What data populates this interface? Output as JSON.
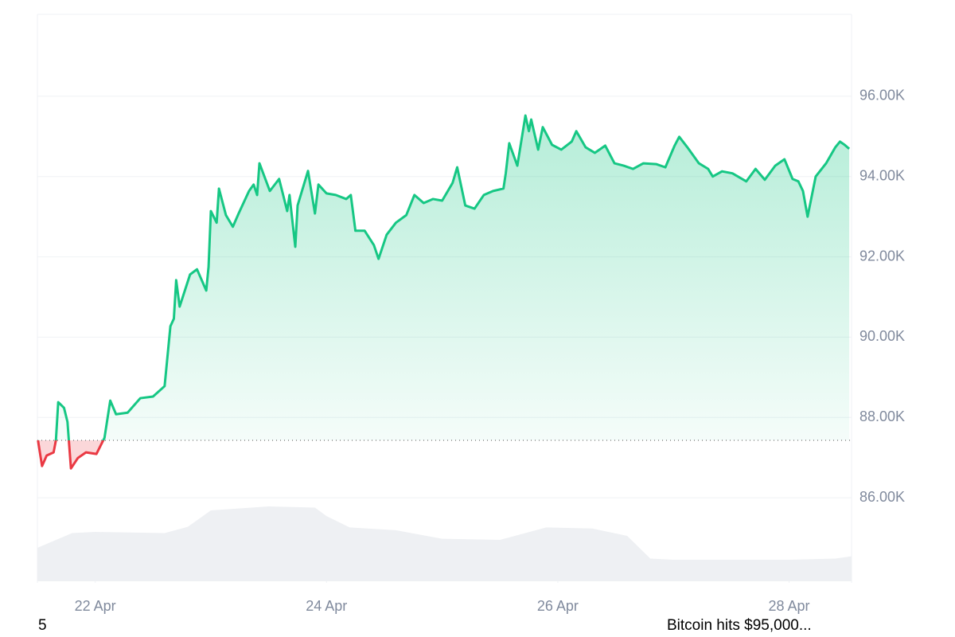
{
  "chart_data": {
    "type": "line",
    "x": [
      21.505,
      21.54,
      21.58,
      21.64,
      21.66,
      21.68,
      21.73,
      21.76,
      21.79,
      21.85,
      21.92,
      22.01,
      22.08,
      22.13,
      22.18,
      22.28,
      22.39,
      22.5,
      22.6,
      22.65,
      22.68,
      22.7,
      22.73,
      22.82,
      22.88,
      22.96,
      22.98,
      23.0,
      23.05,
      23.07,
      23.13,
      23.19,
      23.24,
      23.33,
      23.37,
      23.4,
      23.42,
      23.51,
      23.59,
      23.66,
      23.68,
      23.73,
      23.75,
      23.84,
      23.9,
      23.93,
      24.0,
      24.08,
      24.17,
      24.21,
      24.25,
      24.33,
      24.41,
      24.45,
      24.52,
      24.6,
      24.69,
      24.76,
      24.84,
      24.92,
      25.0,
      25.09,
      25.13,
      25.2,
      25.28,
      25.36,
      25.44,
      25.53,
      25.55,
      25.58,
      25.65,
      25.72,
      25.75,
      25.77,
      25.83,
      25.87,
      25.95,
      26.03,
      26.12,
      26.16,
      26.24,
      26.32,
      26.41,
      26.49,
      26.57,
      26.65,
      26.74,
      26.85,
      26.93,
      27.01,
      27.05,
      27.12,
      27.22,
      27.3,
      27.34,
      27.42,
      27.51,
      27.63,
      27.71,
      27.79,
      27.88,
      27.96,
      28.03,
      28.08,
      28.12,
      28.16,
      28.23,
      28.32,
      28.4,
      28.44,
      28.48,
      28.52
    ],
    "series": [
      {
        "color": "#16c784",
        "values": [
          87430,
          86790,
          87050,
          87130,
          87430,
          88380,
          88240,
          87890,
          86730,
          86990,
          87130,
          87090,
          87490,
          88420,
          88080,
          88120,
          88480,
          88520,
          88780,
          90270,
          90460,
          91420,
          90760,
          91560,
          91690,
          91160,
          91750,
          93140,
          92850,
          93700,
          93040,
          92750,
          93080,
          93640,
          93800,
          93540,
          94330,
          93640,
          93940,
          93140,
          93540,
          92250,
          93280,
          94140,
          93080,
          93800,
          93580,
          93540,
          93440,
          93540,
          92650,
          92650,
          92290,
          91950,
          92550,
          92850,
          93040,
          93540,
          93340,
          93440,
          93400,
          93840,
          94230,
          93280,
          93200,
          93540,
          93640,
          93700,
          94080,
          94830,
          94270,
          95520,
          95130,
          95420,
          94670,
          95230,
          94790,
          94670,
          94870,
          95130,
          94730,
          94590,
          94770,
          94330,
          94270,
          94190,
          94330,
          94310,
          94230,
          94770,
          94990,
          94730,
          94330,
          94190,
          94000,
          94130,
          94080,
          93880,
          94190,
          93920,
          94270,
          94430,
          93940,
          93880,
          93640,
          93000,
          94000,
          94330,
          94730,
          94870,
          94790,
          94690
        ]
      }
    ],
    "baseline": 87430,
    "below_color": "#ea3943",
    "volume": {
      "color": "#eef0f3",
      "axis": "y2",
      "x": [
        21.5,
        21.8,
        22.0,
        22.6,
        22.8,
        23.0,
        23.5,
        23.9,
        24.0,
        24.2,
        24.6,
        25.0,
        25.5,
        25.9,
        26.3,
        26.6,
        26.8,
        27.0,
        28.0,
        28.4,
        28.54
      ],
      "values": [
        5.9,
        8.5,
        8.7,
        8.5,
        9.6,
        12.5,
        13.2,
        13.0,
        11.5,
        9.5,
        9.0,
        7.5,
        7.3,
        9.5,
        9.3,
        8.0,
        4.0,
        3.8,
        3.8,
        4.0,
        4.4
      ]
    },
    "xlim": [
      21.5,
      28.54
    ],
    "xticks": [
      {
        "value": 22,
        "label": "22 Apr"
      },
      {
        "value": 24,
        "label": "24 Apr"
      },
      {
        "value": 26,
        "label": "26 Apr"
      },
      {
        "value": 28,
        "label": "28 Apr"
      }
    ],
    "ylim": [
      83920,
      98040
    ],
    "yticks": [
      {
        "value": 86000,
        "label": "86.00K"
      },
      {
        "value": 88000,
        "label": "88.00K"
      },
      {
        "value": 90000,
        "label": "90.00K"
      },
      {
        "value": 92000,
        "label": "92.00K"
      },
      {
        "value": 94000,
        "label": "94.00K"
      },
      {
        "value": 96000,
        "label": "96.00K"
      }
    ],
    "y2lim": [
      0,
      100
    ],
    "grid": true
  },
  "footer": {
    "left": "5",
    "right": "Bitcoin hits $95,000..."
  }
}
